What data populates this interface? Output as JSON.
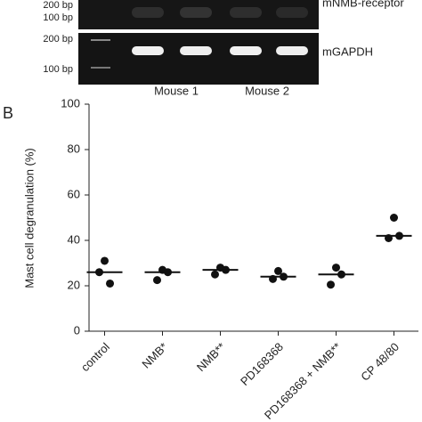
{
  "gel": {
    "top_labels": [
      "200 bp",
      "100 bp"
    ],
    "top_name": "mNMB-receptor",
    "bottom_labels": [
      "200 bp",
      "100 bp"
    ],
    "bottom_name": "mGAPDH",
    "mice": [
      "Mouse 1",
      "Mouse 2"
    ]
  },
  "panel": "B",
  "chart_data": {
    "type": "dot",
    "ylabel": "Mast cell degranulation (%)",
    "categories": [
      "control",
      "NMB*",
      "NMB**",
      "PD168368",
      "PD168368 + NMB**",
      "CP 48/80"
    ],
    "values": [
      [
        31,
        26,
        21
      ],
      [
        27,
        22.5,
        26
      ],
      [
        28,
        25,
        27
      ],
      [
        26.5,
        23,
        24
      ],
      [
        28,
        20.5,
        25
      ],
      [
        50,
        41,
        42
      ]
    ],
    "medians": [
      26,
      26,
      27,
      24,
      25,
      42
    ],
    "color": "#111111",
    "ylim": [
      0,
      100
    ],
    "yticks": [
      0,
      20,
      40,
      60,
      80,
      100
    ]
  }
}
